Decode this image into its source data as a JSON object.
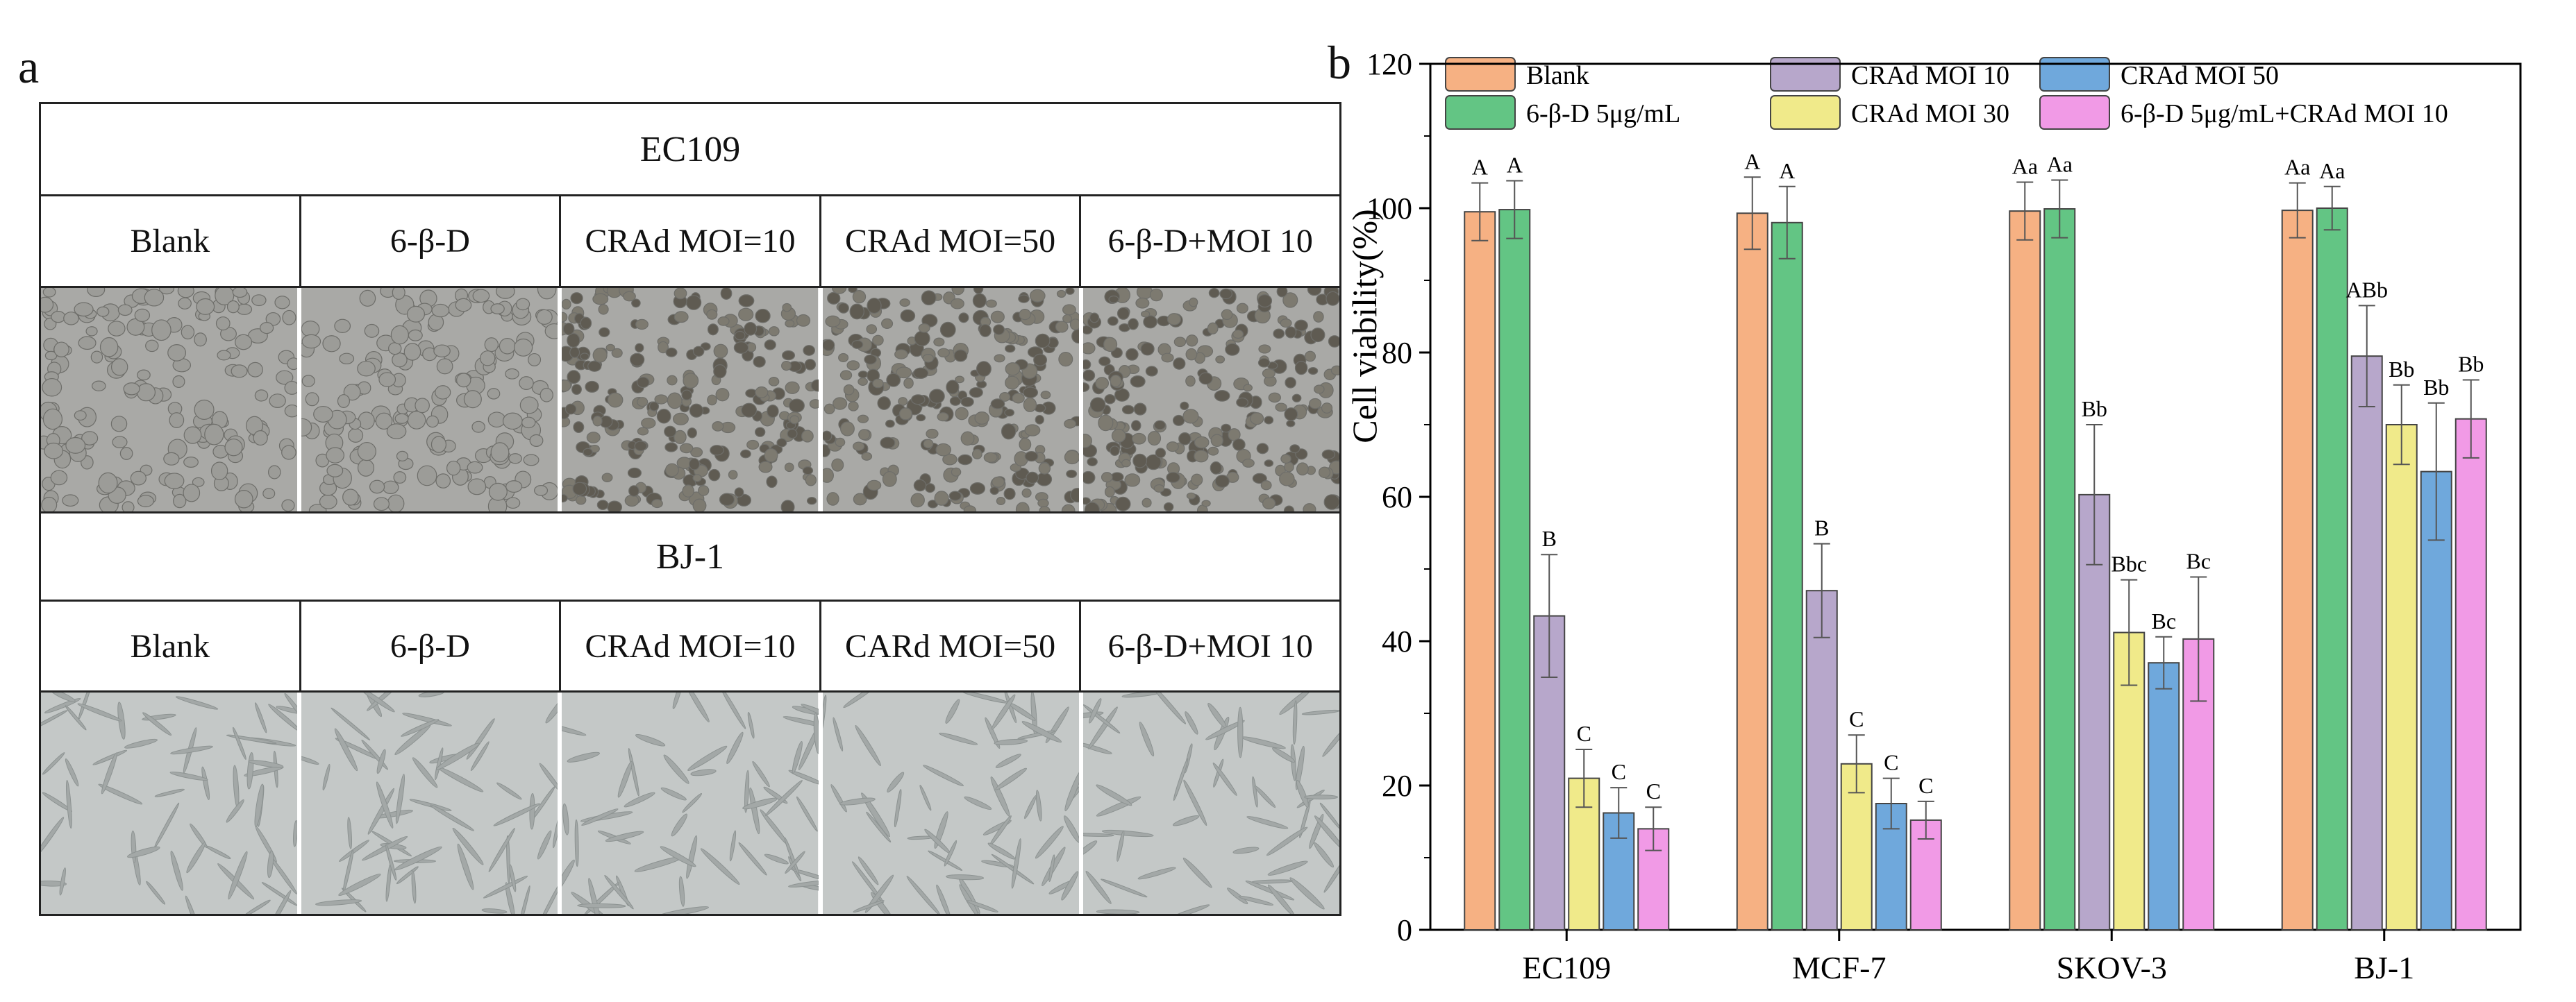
{
  "panel_a": {
    "letter": "a",
    "blocks": [
      {
        "cell_line": "EC109",
        "labels": [
          "Blank",
          "6-β-D",
          "CRAd MOI=10",
          "CRAd MOI=50",
          "6-β-D+MOI 10"
        ],
        "image_tone": "#a9a9a6"
      },
      {
        "cell_line": "BJ-1",
        "labels": [
          "Blank",
          "6-β-D",
          "CRAd MOI=10",
          "CARd MOI=50",
          "6-β-D+MOI 10"
        ],
        "image_tone": "#c4c8c7"
      }
    ]
  },
  "panel_b": {
    "letter": "b",
    "chart_data": {
      "type": "bar",
      "title": "",
      "xlabel": "",
      "ylabel": "Cell viability(%)",
      "ylim": [
        0,
        120
      ],
      "yticks": [
        0,
        20,
        40,
        60,
        80,
        100,
        120
      ],
      "grid": false,
      "legend_position": "top",
      "categories": [
        "EC109",
        "MCF-7",
        "SKOV-3",
        "BJ-1"
      ],
      "series": [
        {
          "name": "Blank",
          "color": "#f6b183",
          "values": [
            99.5,
            99.3,
            99.6,
            99.7
          ],
          "errors": [
            4.0,
            5.0,
            4.0,
            3.8
          ],
          "labels": [
            "A",
            "A",
            "Aa",
            "Aa"
          ]
        },
        {
          "name": "6-β-D 5μg/mL",
          "color": "#63c584",
          "values": [
            99.8,
            98.0,
            99.9,
            100.0
          ],
          "errors": [
            4.0,
            5.0,
            4.0,
            3.0
          ],
          "labels": [
            "A",
            "A",
            "Aa",
            "Aa"
          ]
        },
        {
          "name": "CRAd MOI 10",
          "color": "#b7a7cb",
          "values": [
            43.5,
            47.0,
            60.3,
            79.5
          ],
          "errors": [
            8.5,
            6.5,
            9.7,
            7.0
          ],
          "labels": [
            "B",
            "B",
            "Bb",
            "ABb"
          ]
        },
        {
          "name": "CRAd MOI 30",
          "color": "#f0ea8a",
          "values": [
            21.0,
            23.0,
            41.2,
            70.0
          ],
          "errors": [
            4.0,
            4.0,
            7.3,
            5.5
          ],
          "labels": [
            "C",
            "C",
            "Bbc",
            "Bb"
          ]
        },
        {
          "name": "CRAd MOI 50",
          "color": "#6fa8dc",
          "values": [
            16.2,
            17.5,
            37.0,
            63.5
          ],
          "errors": [
            3.5,
            3.5,
            3.6,
            9.5
          ],
          "labels": [
            "C",
            "C",
            "Bc",
            "Bb"
          ]
        },
        {
          "name": "6-β-D 5μg/mL+CRAd MOI 10",
          "color": "#f19ae6",
          "values": [
            14.0,
            15.2,
            40.3,
            70.8
          ],
          "errors": [
            3.0,
            2.6,
            8.6,
            5.4
          ],
          "labels": [
            "C",
            "C",
            "Bc",
            "Bb"
          ]
        }
      ]
    }
  }
}
